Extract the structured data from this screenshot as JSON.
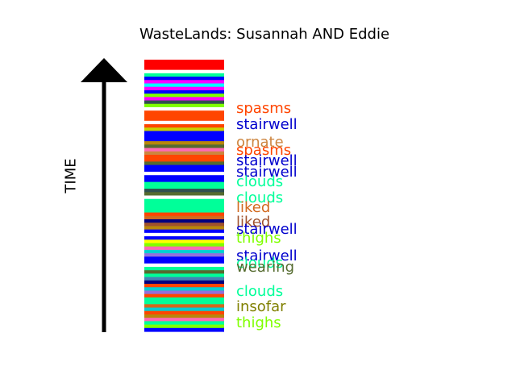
{
  "title": "WasteLands: Susannah AND Eddie",
  "ylabel": "TIME",
  "stripes": [
    "#ff0000",
    "#ff0000",
    "#ff0000",
    "#ffffff",
    "#00ff99",
    "#0000ff",
    "#ff00ff",
    "#00ffff",
    "#ff00ff",
    "#0000ff",
    "#80ff00",
    "#ff00ff",
    "#2f4f4f",
    "#80ff00",
    "#ffffff",
    "#ff4500",
    "#ff4500",
    "#ff4500",
    "#ffffff",
    "#ff4500",
    "#c8d000",
    "#0000ff",
    "#0000ff",
    "#0000ff",
    "#b8860b",
    "#556b2f",
    "#ff69b4",
    "#cd853f",
    "#ff4500",
    "#ff4500",
    "#556b2f",
    "#0000ff",
    "#0000ff",
    "#ffffff",
    "#0000ff",
    "#0000ff",
    "#00ff99",
    "#00ff99",
    "#2f4f4f",
    "#556b2f",
    "#ffffff",
    "#00ff99",
    "#00ff99",
    "#00ff99",
    "#00ff99",
    "#ff4500",
    "#d2691e",
    "#000080",
    "#a0522d",
    "#b8860b",
    "#0000ff",
    "#ffffff",
    "#0000ff",
    "#ffff00",
    "#7fff00",
    "#ff69b4",
    "#00ced1",
    "#9370db",
    "#0000ff",
    "#0000ff",
    "#ffffff",
    "#00ff99",
    "#556b2f",
    "#00ff99",
    "#4682b4",
    "#000080",
    "#ff4500",
    "#00ced1",
    "#9370db",
    "#ff4500",
    "#00ff99",
    "#00ff99",
    "#d2691e",
    "#00ced1",
    "#ff4500",
    "#b8860b",
    "#ff69b4",
    "#00ff99",
    "#7fff00",
    "#0000ff"
  ],
  "labels": [
    {
      "text": "spasms",
      "color": "#ff4500",
      "pos": 0.18
    },
    {
      "text": "stairwell",
      "color": "#0000cd",
      "pos": 0.24
    },
    {
      "text": "ornate",
      "color": "#cd853f",
      "pos": 0.305
    },
    {
      "text": "spasms",
      "color": "#ff4500",
      "pos": 0.335
    },
    {
      "text": "stairwell",
      "color": "#0000cd",
      "pos": 0.375
    },
    {
      "text": "stairwell",
      "color": "#0000cd",
      "pos": 0.415
    },
    {
      "text": "clouds",
      "color": "#00ff99",
      "pos": 0.45
    },
    {
      "text": "clouds",
      "color": "#00ff99",
      "pos": 0.51
    },
    {
      "text": "liked",
      "color": "#d2691e",
      "pos": 0.545
    },
    {
      "text": "liked",
      "color": "#a0522d",
      "pos": 0.6
    },
    {
      "text": "stairwell",
      "color": "#0000cd",
      "pos": 0.625
    },
    {
      "text": "thighs",
      "color": "#7fff00",
      "pos": 0.66
    },
    {
      "text": "stairwell",
      "color": "#0000cd",
      "pos": 0.725
    },
    {
      "text": "clouds",
      "color": "#00ff99",
      "pos": 0.75
    },
    {
      "text": "wearing",
      "color": "#556b2f",
      "pos": 0.765
    },
    {
      "text": "clouds",
      "color": "#00ff99",
      "pos": 0.855
    },
    {
      "text": "insofar",
      "color": "#808000",
      "pos": 0.91
    },
    {
      "text": "thighs",
      "color": "#7fff00",
      "pos": 0.97
    }
  ]
}
